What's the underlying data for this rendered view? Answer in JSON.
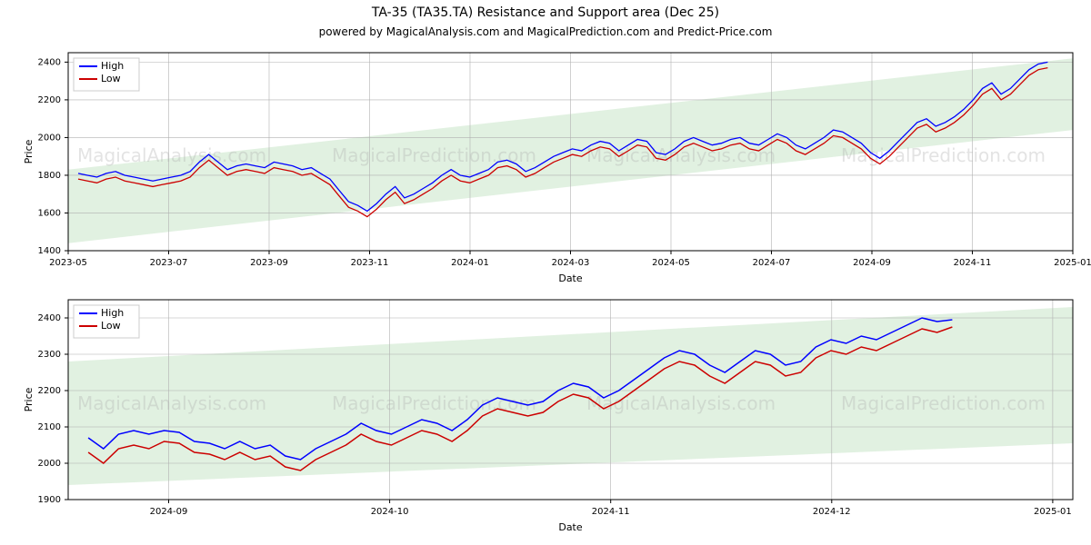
{
  "title": "TA-35 (TA35.TA) Resistance and Support area (Dec 25)",
  "title_fontsize": 14,
  "subtitle": "powered by MagicalAnalysis.com and MagicalPrediction.com and Predict-Price.com",
  "subtitle_fontsize": 12,
  "background_color": "#ffffff",
  "watermark_texts": [
    "MagicalAnalysis.com",
    "MagicalPrediction.com"
  ],
  "watermark_color": "#b0b0b0",
  "watermark_fontsize": 20,
  "chart_top": {
    "type": "line",
    "xlabel": "Date",
    "ylabel": "Price",
    "label_fontsize": 11,
    "xlim_dates": [
      "2023-05-01",
      "2025-01-10"
    ],
    "xticks": [
      "2023-05",
      "2023-07",
      "2023-09",
      "2023-11",
      "2024-01",
      "2024-03",
      "2024-05",
      "2024-07",
      "2024-09",
      "2024-11",
      "2025-01"
    ],
    "ylim": [
      1400,
      2450
    ],
    "yticks": [
      1400,
      1600,
      1800,
      2000,
      2200,
      2400
    ],
    "grid_color": "#b0b0b0",
    "border_color": "#000000",
    "band": {
      "color": "#c8e6c9",
      "opacity": 0.55,
      "upper_start": 1830,
      "upper_end": 2420,
      "lower_start": 1440,
      "lower_end": 2040
    },
    "legend": {
      "items": [
        "High",
        "Low"
      ],
      "colors": [
        "#0000ff",
        "#cc0000"
      ]
    },
    "series": [
      {
        "name": "High",
        "color": "#0000ff",
        "linewidth": 1.3,
        "y": [
          1810,
          1800,
          1790,
          1810,
          1820,
          1800,
          1790,
          1780,
          1770,
          1780,
          1790,
          1800,
          1820,
          1870,
          1910,
          1870,
          1830,
          1850,
          1860,
          1850,
          1840,
          1870,
          1860,
          1850,
          1830,
          1840,
          1810,
          1780,
          1720,
          1660,
          1640,
          1610,
          1650,
          1700,
          1740,
          1680,
          1700,
          1730,
          1760,
          1800,
          1830,
          1800,
          1790,
          1810,
          1830,
          1870,
          1880,
          1860,
          1820,
          1840,
          1870,
          1900,
          1920,
          1940,
          1930,
          1960,
          1980,
          1970,
          1930,
          1960,
          1990,
          1980,
          1920,
          1910,
          1940,
          1980,
          2000,
          1980,
          1960,
          1970,
          1990,
          2000,
          1970,
          1960,
          1990,
          2020,
          2000,
          1960,
          1940,
          1970,
          2000,
          2040,
          2030,
          2000,
          1970,
          1920,
          1890,
          1930,
          1980,
          2030,
          2080,
          2100,
          2060,
          2080,
          2110,
          2150,
          2200,
          2260,
          2290,
          2230,
          2260,
          2310,
          2360,
          2390,
          2400
        ]
      },
      {
        "name": "Low",
        "color": "#cc0000",
        "linewidth": 1.3,
        "y": [
          1780,
          1770,
          1760,
          1780,
          1790,
          1770,
          1760,
          1750,
          1740,
          1750,
          1760,
          1770,
          1790,
          1840,
          1880,
          1840,
          1800,
          1820,
          1830,
          1820,
          1810,
          1840,
          1830,
          1820,
          1800,
          1810,
          1780,
          1750,
          1690,
          1630,
          1610,
          1580,
          1620,
          1670,
          1710,
          1650,
          1670,
          1700,
          1730,
          1770,
          1800,
          1770,
          1760,
          1780,
          1800,
          1840,
          1850,
          1830,
          1790,
          1810,
          1840,
          1870,
          1890,
          1910,
          1900,
          1930,
          1950,
          1940,
          1900,
          1930,
          1960,
          1950,
          1890,
          1880,
          1910,
          1950,
          1970,
          1950,
          1930,
          1940,
          1960,
          1970,
          1940,
          1930,
          1960,
          1990,
          1970,
          1930,
          1910,
          1940,
          1970,
          2010,
          2000,
          1970,
          1940,
          1890,
          1860,
          1900,
          1950,
          2000,
          2050,
          2070,
          2030,
          2050,
          2080,
          2120,
          2170,
          2230,
          2260,
          2200,
          2230,
          2280,
          2330,
          2360,
          2370
        ]
      }
    ]
  },
  "chart_bottom": {
    "type": "line",
    "xlabel": "Date",
    "ylabel": "Price",
    "label_fontsize": 11,
    "xlim_dates": [
      "2024-08-15",
      "2025-01-15"
    ],
    "xticks": [
      "2024-09",
      "2024-10",
      "2024-11",
      "2024-12",
      "2025-01"
    ],
    "ylim": [
      1900,
      2450
    ],
    "yticks": [
      1900,
      2000,
      2100,
      2200,
      2300,
      2400
    ],
    "grid_color": "#b0b0b0",
    "border_color": "#000000",
    "band": {
      "color": "#c8e6c9",
      "opacity": 0.55,
      "upper_start": 2280,
      "upper_end": 2430,
      "lower_start": 1940,
      "lower_end": 2055
    },
    "legend": {
      "items": [
        "High",
        "Low"
      ],
      "colors": [
        "#0000ff",
        "#cc0000"
      ]
    },
    "series": [
      {
        "name": "High",
        "color": "#0000ff",
        "linewidth": 1.5,
        "y": [
          2070,
          2040,
          2080,
          2090,
          2080,
          2090,
          2085,
          2060,
          2055,
          2040,
          2060,
          2040,
          2050,
          2020,
          2010,
          2040,
          2060,
          2080,
          2110,
          2090,
          2080,
          2100,
          2120,
          2110,
          2090,
          2120,
          2160,
          2180,
          2170,
          2160,
          2170,
          2200,
          2220,
          2210,
          2180,
          2200,
          2230,
          2260,
          2290,
          2310,
          2300,
          2270,
          2250,
          2280,
          2310,
          2300,
          2270,
          2280,
          2320,
          2340,
          2330,
          2350,
          2340,
          2360,
          2380,
          2400,
          2390,
          2395
        ]
      },
      {
        "name": "Low",
        "color": "#cc0000",
        "linewidth": 1.5,
        "y": [
          2030,
          2000,
          2040,
          2050,
          2040,
          2060,
          2055,
          2030,
          2025,
          2010,
          2030,
          2010,
          2020,
          1990,
          1980,
          2010,
          2030,
          2050,
          2080,
          2060,
          2050,
          2070,
          2090,
          2080,
          2060,
          2090,
          2130,
          2150,
          2140,
          2130,
          2140,
          2170,
          2190,
          2180,
          2150,
          2170,
          2200,
          2230,
          2260,
          2280,
          2270,
          2240,
          2220,
          2250,
          2280,
          2270,
          2240,
          2250,
          2290,
          2310,
          2300,
          2320,
          2310,
          2330,
          2350,
          2370,
          2360,
          2375
        ]
      }
    ]
  }
}
